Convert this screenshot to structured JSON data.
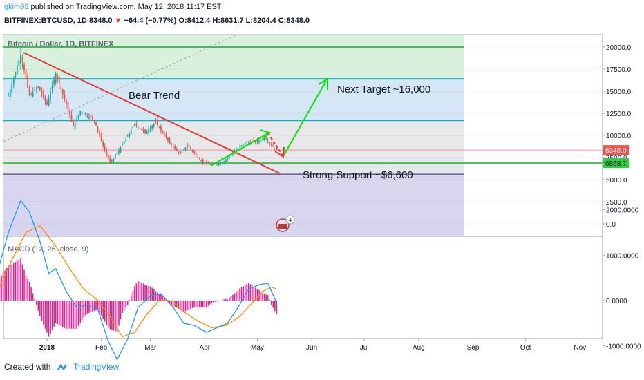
{
  "header": {
    "username": "gkim93",
    "published_text": "published on TradingView.com, May 12, 2018 11:17 EST",
    "symbol": "BITFINEX:BTCUSD, 1D",
    "last": "8348.0",
    "change_arrow": "▼",
    "change": "−64.4 (−0.77%)",
    "ohlc": "O:8412.4 H:8631.7 L:8204.4 C:8348.0"
  },
  "chart_data": [
    {
      "type": "candlestick",
      "title": "Bitcoin / Dollar, 1D, BITFINEX",
      "y_ticks": [
        "20000.0",
        "17500.0",
        "15000.0",
        "12500.0",
        "10000.0",
        "7500.0",
        "5000.0",
        "2500.0",
        "0.0"
      ],
      "x_ticks": [
        "2018",
        "Feb",
        "Mar",
        "Apr",
        "May",
        "Jun",
        "Jul",
        "Aug",
        "Sep",
        "Oct",
        "Nov"
      ],
      "price_labels": {
        "last": "8348.0",
        "support": "6868.7"
      },
      "price_path": [
        {
          "d": "2017-12-10",
          "p": 14500
        },
        {
          "d": "2017-12-17",
          "p": 19200
        },
        {
          "d": "2017-12-22",
          "p": 14500
        },
        {
          "d": "2017-12-27",
          "p": 15500
        },
        {
          "d": "2018-01-01",
          "p": 13500
        },
        {
          "d": "2018-01-06",
          "p": 17000
        },
        {
          "d": "2018-01-12",
          "p": 13500
        },
        {
          "d": "2018-01-16",
          "p": 11000
        },
        {
          "d": "2018-01-20",
          "p": 12800
        },
        {
          "d": "2018-01-28",
          "p": 11700
        },
        {
          "d": "2018-02-02",
          "p": 8800
        },
        {
          "d": "2018-02-06",
          "p": 6900
        },
        {
          "d": "2018-02-11",
          "p": 8300
        },
        {
          "d": "2018-02-20",
          "p": 11300
        },
        {
          "d": "2018-02-26",
          "p": 10300
        },
        {
          "d": "2018-03-04",
          "p": 11500
        },
        {
          "d": "2018-03-12",
          "p": 9100
        },
        {
          "d": "2018-03-18",
          "p": 7900
        },
        {
          "d": "2018-03-22",
          "p": 8900
        },
        {
          "d": "2018-03-31",
          "p": 6900
        },
        {
          "d": "2018-04-05",
          "p": 6700
        },
        {
          "d": "2018-04-11",
          "p": 6900
        },
        {
          "d": "2018-04-17",
          "p": 8100
        },
        {
          "d": "2018-04-24",
          "p": 9200
        },
        {
          "d": "2018-05-01",
          "p": 9300
        },
        {
          "d": "2018-05-05",
          "p": 9800
        },
        {
          "d": "2018-05-08",
          "p": 9100
        },
        {
          "d": "2018-05-12",
          "p": 8348
        }
      ],
      "zones": [
        {
          "from": 16400,
          "to": 20000,
          "color": "#d8f0dc"
        },
        {
          "from": 11700,
          "to": 16400,
          "color": "#d5e6f5"
        },
        {
          "from": 6868.7,
          "to": 11700,
          "color": "#e8e8ea"
        },
        {
          "from": 5600,
          "to": 6868.7,
          "color": "#e6e6ee"
        },
        {
          "from": 0,
          "to": 5600,
          "color": "#d8d6ee"
        }
      ],
      "horizontal_levels": [
        20000,
        16400,
        11700,
        6868.7,
        5600
      ],
      "annotations": {
        "bear_trend": "Bear Trend",
        "next_target": "Next Target ~16,000",
        "strong_support": "Strong Support ~$6,600",
        "event_badge": "4"
      },
      "colors": {
        "up": "#26a69a",
        "down": "#ef5350",
        "trend_line": "#e53935",
        "arrow": "#00e600",
        "level": "#2ecc40",
        "level_blue": "#1fa8b8"
      }
    },
    {
      "type": "line",
      "title": "MACD (12, 26, close, 9)",
      "y_ticks": [
        "2000.0000",
        "1000.0000",
        "0.0000",
        "-1000.0000"
      ],
      "macd_path": [
        {
          "d": "2017-12-05",
          "v": 800
        },
        {
          "d": "2017-12-10",
          "v": 1500
        },
        {
          "d": "2017-12-17",
          "v": 2200
        },
        {
          "d": "2017-12-22",
          "v": 1950
        },
        {
          "d": "2017-12-28",
          "v": 1300
        },
        {
          "d": "2018-01-02",
          "v": 600
        },
        {
          "d": "2018-01-06",
          "v": 700
        },
        {
          "d": "2018-01-12",
          "v": 200
        },
        {
          "d": "2018-01-18",
          "v": -150
        },
        {
          "d": "2018-01-24",
          "v": -100
        },
        {
          "d": "2018-01-30",
          "v": -200
        },
        {
          "d": "2018-02-05",
          "v": -900
        },
        {
          "d": "2018-02-10",
          "v": -1300
        },
        {
          "d": "2018-02-16",
          "v": -850
        },
        {
          "d": "2018-02-22",
          "v": -150
        },
        {
          "d": "2018-03-01",
          "v": 100
        },
        {
          "d": "2018-03-07",
          "v": 150
        },
        {
          "d": "2018-03-14",
          "v": -150
        },
        {
          "d": "2018-03-20",
          "v": -500
        },
        {
          "d": "2018-03-26",
          "v": -550
        },
        {
          "d": "2018-04-02",
          "v": -700
        },
        {
          "d": "2018-04-08",
          "v": -600
        },
        {
          "d": "2018-04-14",
          "v": -500
        },
        {
          "d": "2018-04-20",
          "v": -150
        },
        {
          "d": "2018-04-26",
          "v": 250
        },
        {
          "d": "2018-05-02",
          "v": 350
        },
        {
          "d": "2018-05-07",
          "v": 380
        },
        {
          "d": "2018-05-12",
          "v": -50
        }
      ],
      "signal_path": [
        {
          "d": "2017-12-05",
          "v": 300
        },
        {
          "d": "2017-12-12",
          "v": 900
        },
        {
          "d": "2017-12-20",
          "v": 1500
        },
        {
          "d": "2017-12-28",
          "v": 1650
        },
        {
          "d": "2018-01-06",
          "v": 1200
        },
        {
          "d": "2018-01-14",
          "v": 700
        },
        {
          "d": "2018-01-22",
          "v": 250
        },
        {
          "d": "2018-01-30",
          "v": 0
        },
        {
          "d": "2018-02-06",
          "v": -350
        },
        {
          "d": "2018-02-13",
          "v": -800
        },
        {
          "d": "2018-02-20",
          "v": -700
        },
        {
          "d": "2018-02-27",
          "v": -300
        },
        {
          "d": "2018-03-06",
          "v": 0
        },
        {
          "d": "2018-03-13",
          "v": 0
        },
        {
          "d": "2018-03-20",
          "v": -250
        },
        {
          "d": "2018-03-28",
          "v": -450
        },
        {
          "d": "2018-04-05",
          "v": -600
        },
        {
          "d": "2018-04-13",
          "v": -550
        },
        {
          "d": "2018-04-21",
          "v": -350
        },
        {
          "d": "2018-04-28",
          "v": -50
        },
        {
          "d": "2018-05-04",
          "v": 200
        },
        {
          "d": "2018-05-09",
          "v": 300
        },
        {
          "d": "2018-05-12",
          "v": 250
        }
      ],
      "colors": {
        "macd": "#2196f3",
        "signal": "#ff8c00",
        "hist": "#e91e8c"
      }
    }
  ],
  "footer": {
    "created_with": "Created with",
    "brand": "TradingView"
  }
}
